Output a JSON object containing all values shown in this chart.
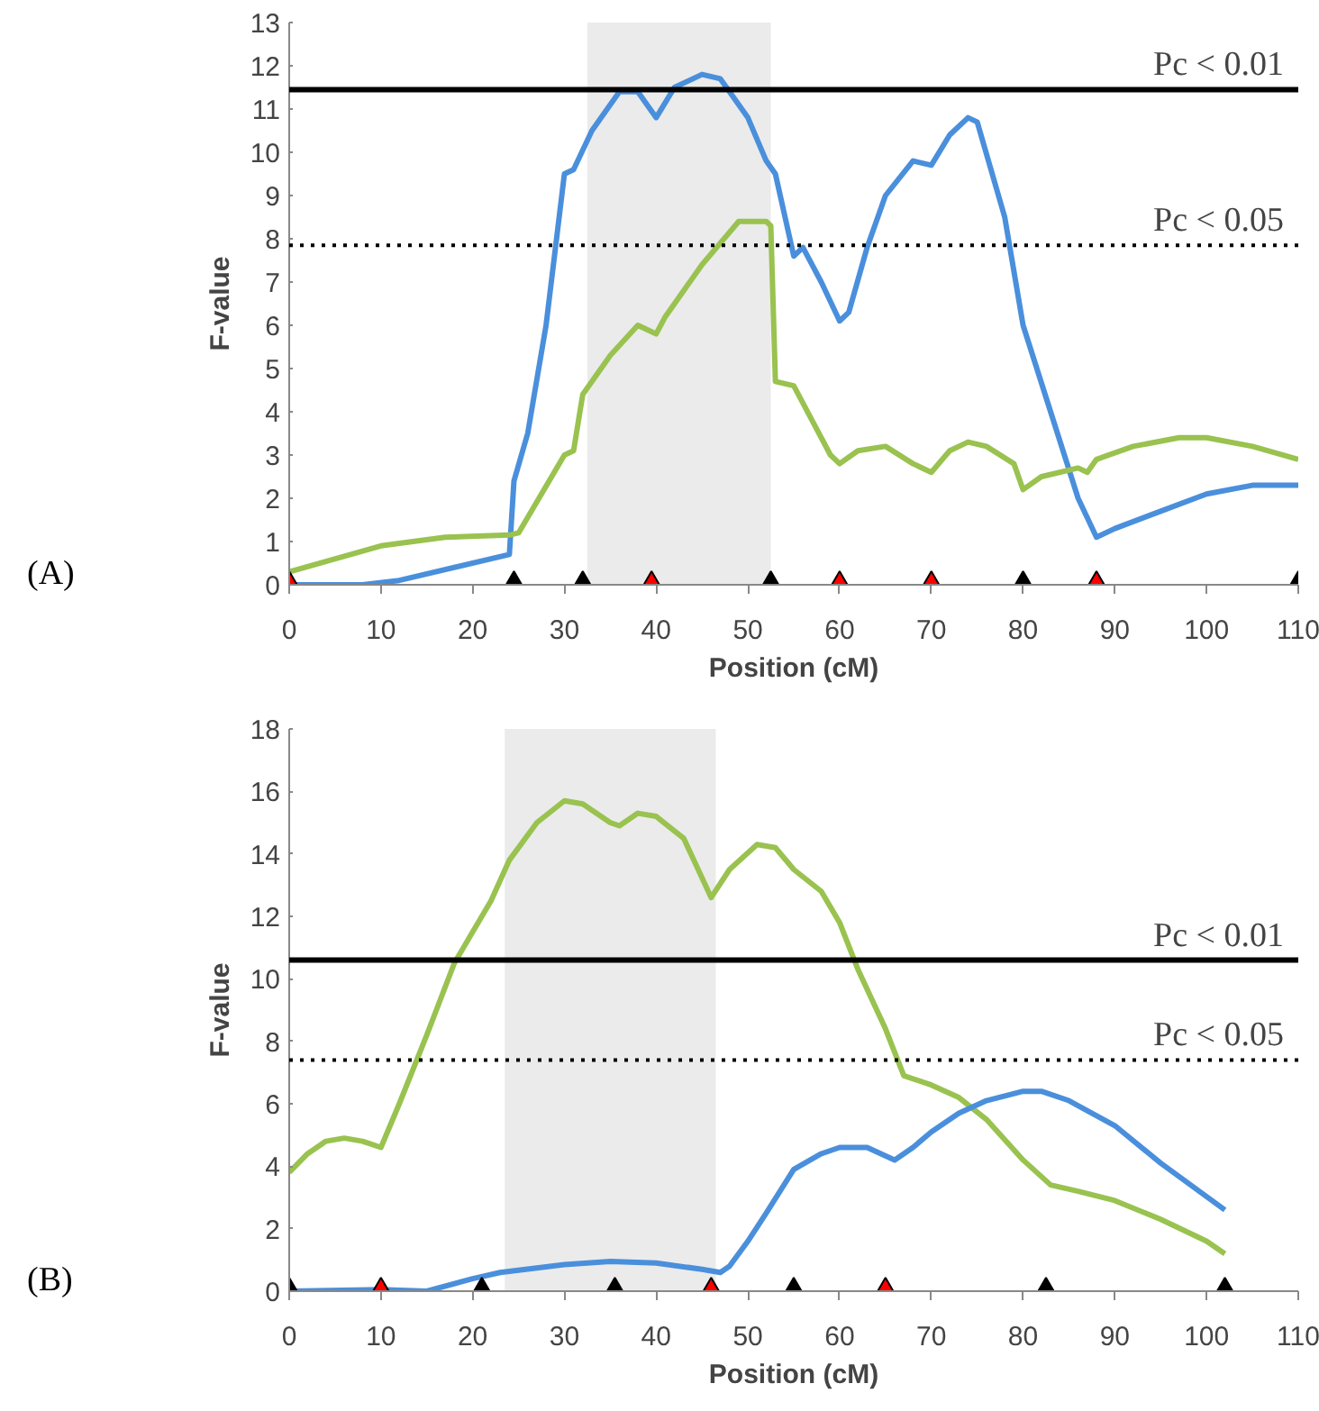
{
  "chart_data": [
    {
      "type": "line",
      "xlabel": "Position (cM)",
      "ylabel": "F-value",
      "annotations": [
        "(A)"
      ],
      "xlim": [
        0,
        110
      ],
      "xticks": [
        0,
        10,
        20,
        30,
        40,
        50,
        60,
        70,
        80,
        90,
        100,
        110
      ],
      "ylim": [
        0,
        13
      ],
      "yticks": [
        0,
        1,
        2,
        3,
        4,
        5,
        6,
        7,
        8,
        9,
        10,
        11,
        12,
        13
      ],
      "grid": false,
      "marker": "none",
      "line_style": "solid",
      "ref_lines": [
        {
          "axis": "y",
          "value": 11.45,
          "label": "Pc < 0.01",
          "color": "#000000",
          "line_style": "solid"
        },
        {
          "axis": "y",
          "value": 7.85,
          "label": "Pc < 0.05",
          "color": "#000000",
          "line_style": "dotted"
        }
      ],
      "bands": [
        {
          "axis": "x",
          "from": 32.5,
          "to": 52.5,
          "color": "#e7e7e7"
        }
      ],
      "series": [
        {
          "color": "#4a8fdc",
          "x": [
            0,
            8,
            12,
            24,
            24.5,
            26,
            28,
            30,
            31,
            33,
            36,
            38,
            40,
            42,
            45,
            47,
            50,
            52,
            53,
            55,
            56,
            58,
            60,
            61,
            63,
            65,
            68,
            70,
            72,
            74,
            75,
            78,
            80,
            83,
            86,
            88,
            90,
            95,
            100,
            105,
            110
          ],
          "values": [
            0,
            0,
            0.1,
            0.7,
            2.4,
            3.5,
            6,
            9.5,
            9.6,
            10.5,
            11.4,
            11.4,
            10.8,
            11.5,
            11.8,
            11.7,
            10.8,
            9.8,
            9.5,
            7.6,
            7.8,
            7,
            6.1,
            6.3,
            7.8,
            9,
            9.8,
            9.7,
            10.4,
            10.8,
            10.7,
            8.5,
            6,
            4,
            2,
            1.1,
            1.3,
            1.7,
            2.1,
            2.3,
            2.3
          ]
        },
        {
          "color": "#99c24f",
          "x": [
            0,
            10,
            17,
            24,
            25,
            30,
            31,
            32,
            35,
            38,
            39,
            40,
            41,
            45,
            49,
            52,
            52.5,
            53,
            55,
            57,
            59,
            60,
            62,
            65,
            68,
            70,
            72,
            74,
            76,
            79,
            80,
            82,
            86,
            87,
            88,
            92,
            97,
            100,
            105,
            110
          ],
          "values": [
            0.3,
            0.9,
            1.1,
            1.15,
            1.2,
            3,
            3.1,
            4.4,
            5.3,
            6,
            5.9,
            5.8,
            6.2,
            7.4,
            8.4,
            8.4,
            8.3,
            4.7,
            4.6,
            3.8,
            3,
            2.8,
            3.1,
            3.2,
            2.8,
            2.6,
            3.1,
            3.3,
            3.2,
            2.8,
            2.2,
            2.5,
            2.7,
            2.6,
            2.9,
            3.2,
            3.4,
            3.4,
            3.2,
            2.9
          ]
        },
        {
          "type": "scatter",
          "marker": "triangle",
          "color": "#ff0000",
          "x": [
            0,
            39.5,
            60,
            70,
            88
          ],
          "values": [
            0,
            0,
            0,
            0,
            0
          ]
        },
        {
          "type": "scatter",
          "marker": "triangle",
          "color": "#000000",
          "x": [
            24.5,
            32,
            52.5,
            80,
            110
          ],
          "values": [
            0,
            0,
            0,
            0,
            0
          ]
        }
      ]
    },
    {
      "type": "line",
      "xlabel": "Position (cM)",
      "ylabel": "F-value",
      "annotations": [
        "(B)"
      ],
      "xlim": [
        0,
        110
      ],
      "xticks": [
        0,
        10,
        20,
        30,
        40,
        50,
        60,
        70,
        80,
        90,
        100,
        110
      ],
      "ylim": [
        0,
        18
      ],
      "yticks": [
        0,
        2,
        4,
        6,
        8,
        10,
        12,
        14,
        16,
        18
      ],
      "grid": false,
      "marker": "none",
      "line_style": "solid",
      "ref_lines": [
        {
          "axis": "y",
          "value": 10.6,
          "label": "Pc < 0.01",
          "color": "#000000",
          "line_style": "solid"
        },
        {
          "axis": "y",
          "value": 7.4,
          "label": "Pc < 0.05",
          "color": "#000000",
          "line_style": "dotted"
        }
      ],
      "bands": [
        {
          "axis": "x",
          "from": 23.5,
          "to": 46.5,
          "color": "#e7e7e7"
        }
      ],
      "series": [
        {
          "color": "#99c24f",
          "x": [
            0,
            2,
            4,
            6,
            8,
            10,
            12,
            15,
            18,
            20,
            22,
            24,
            27,
            30,
            32,
            35,
            36,
            38,
            40,
            43,
            46,
            48,
            51,
            53,
            55,
            58,
            60,
            62,
            65,
            67,
            70,
            73,
            76,
            80,
            83,
            86,
            90,
            95,
            100,
            102
          ],
          "values": [
            3.8,
            4.4,
            4.8,
            4.9,
            4.8,
            4.6,
            6,
            8.2,
            10.5,
            11.5,
            12.5,
            13.8,
            15,
            15.7,
            15.6,
            15,
            14.9,
            15.3,
            15.2,
            14.5,
            12.6,
            13.5,
            14.3,
            14.2,
            13.5,
            12.8,
            11.8,
            10.3,
            8.4,
            6.9,
            6.6,
            6.2,
            5.5,
            4.2,
            3.4,
            3.2,
            2.9,
            2.3,
            1.6,
            1.2
          ]
        },
        {
          "color": "#4a8fdc",
          "x": [
            0,
            10,
            15,
            20,
            23,
            30,
            35,
            40,
            45,
            47,
            48,
            50,
            52,
            55,
            58,
            60,
            63,
            66,
            68,
            70,
            73,
            76,
            80,
            82,
            85,
            90,
            95,
            102
          ],
          "values": [
            0,
            0.05,
            0,
            0.4,
            0.6,
            0.85,
            0.95,
            0.9,
            0.7,
            0.6,
            0.8,
            1.6,
            2.5,
            3.9,
            4.4,
            4.6,
            4.6,
            4.2,
            4.6,
            5.1,
            5.7,
            6.1,
            6.4,
            6.4,
            6.1,
            5.3,
            4.1,
            2.6
          ]
        },
        {
          "type": "scatter",
          "marker": "triangle",
          "color": "#ff0000",
          "x": [
            10,
            46,
            65
          ],
          "values": [
            0,
            0,
            0
          ]
        },
        {
          "type": "scatter",
          "marker": "triangle",
          "color": "#000000",
          "x": [
            0,
            21,
            35.5,
            55,
            82.5,
            102
          ],
          "values": [
            0,
            0,
            0,
            0,
            0,
            0
          ]
        }
      ]
    }
  ]
}
